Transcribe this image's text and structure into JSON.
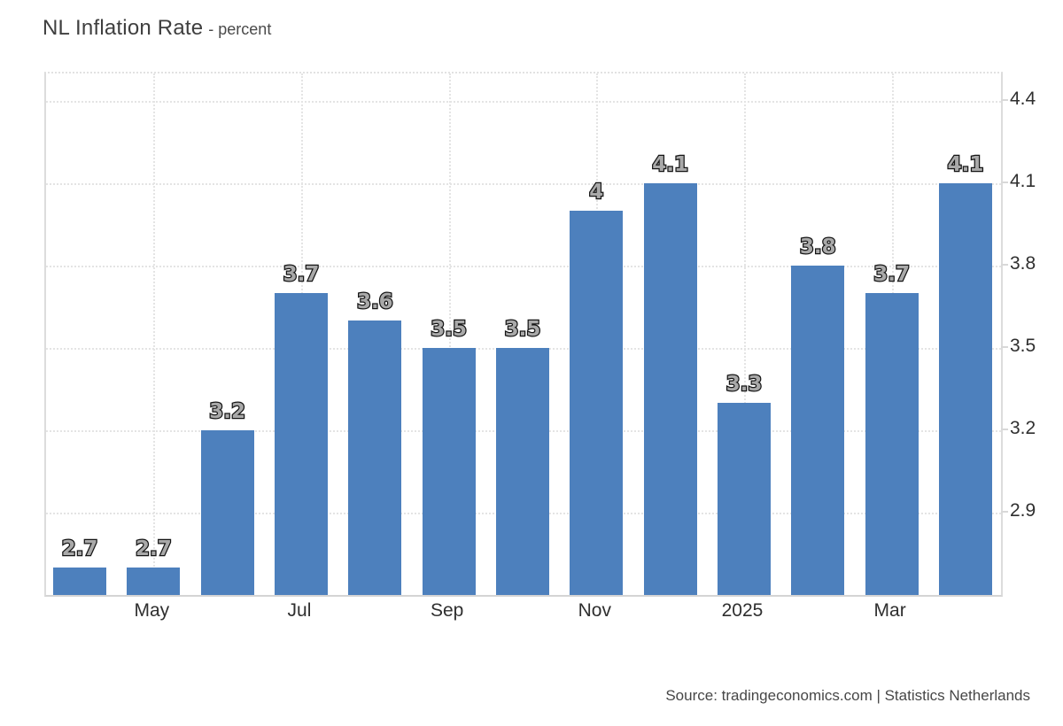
{
  "header": {
    "title": "NL Inflation Rate",
    "subtitle": "- percent"
  },
  "footer": {
    "source_text": "Source: tradingeconomics.com | Statistics Netherlands"
  },
  "chart_data": {
    "type": "bar",
    "title": "NL Inflation Rate",
    "ylabel": "percent",
    "values": [
      2.7,
      2.7,
      3.2,
      3.7,
      3.6,
      3.5,
      3.5,
      4,
      4.1,
      3.3,
      3.8,
      3.7,
      4.1
    ],
    "bar_labels": [
      "2.7",
      "2.7",
      "3.2",
      "3.7",
      "3.6",
      "3.5",
      "3.5",
      "4",
      "4.1",
      "3.3",
      "3.8",
      "3.7",
      "4.1"
    ],
    "x_tick_labels": [
      "May",
      "Jul",
      "Sep",
      "Nov",
      "2025",
      "Mar"
    ],
    "x_tick_bar_indices": [
      1,
      3,
      5,
      7,
      9,
      11
    ],
    "y_ticks": [
      4.4,
      4.1,
      3.8,
      3.5,
      3.2,
      2.9
    ],
    "ylim": [
      2.6,
      4.5
    ],
    "bar_color": "#4d80bd",
    "grid": true,
    "legend_position": "none"
  }
}
